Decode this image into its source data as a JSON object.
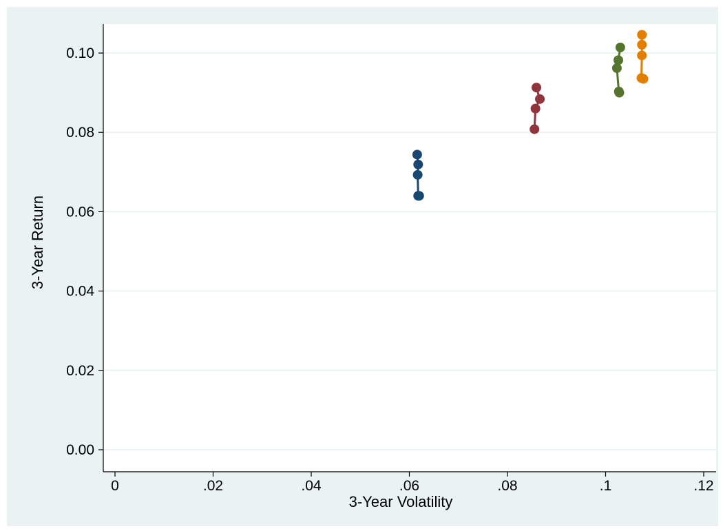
{
  "chart_data": {
    "type": "scatter",
    "title": "",
    "xlabel": "3-Year Volatility",
    "ylabel": "3-Year Return",
    "xlim": [
      0,
      0.12
    ],
    "ylim": [
      0,
      0.1
    ],
    "xticks": [
      "0",
      ".02",
      ".04",
      ".06",
      ".08",
      ".1",
      ".12"
    ],
    "xtick_values": [
      0,
      0.02,
      0.04,
      0.06,
      0.08,
      0.1,
      0.12
    ],
    "yticks": [
      "0.00",
      "0.02",
      "0.04",
      "0.06",
      "0.08",
      "0.10"
    ],
    "ytick_values": [
      0,
      0.02,
      0.04,
      0.06,
      0.08,
      0.1
    ],
    "grid": true,
    "legend": "none",
    "series": [
      {
        "color": "#1a476f",
        "points": [
          {
            "x": 0.0616,
            "y": 0.0744
          },
          {
            "x": 0.0618,
            "y": 0.0719
          },
          {
            "x": 0.0617,
            "y": 0.0693
          },
          {
            "x": 0.0618,
            "y": 0.064
          },
          {
            "x": 0.062,
            "y": 0.064
          }
        ]
      },
      {
        "color": "#90353b",
        "points": [
          {
            "x": 0.0859,
            "y": 0.0913
          },
          {
            "x": 0.0866,
            "y": 0.0884
          },
          {
            "x": 0.0857,
            "y": 0.086
          },
          {
            "x": 0.0855,
            "y": 0.0808
          }
        ]
      },
      {
        "color": "#55752f",
        "points": [
          {
            "x": 0.103,
            "y": 0.1014
          },
          {
            "x": 0.1026,
            "y": 0.0982
          },
          {
            "x": 0.1023,
            "y": 0.0962
          },
          {
            "x": 0.1027,
            "y": 0.0903
          },
          {
            "x": 0.1028,
            "y": 0.09
          }
        ]
      },
      {
        "color": "#e37e00",
        "points": [
          {
            "x": 0.1074,
            "y": 0.1046
          },
          {
            "x": 0.1074,
            "y": 0.1021
          },
          {
            "x": 0.1074,
            "y": 0.0994
          },
          {
            "x": 0.1073,
            "y": 0.0937
          },
          {
            "x": 0.1077,
            "y": 0.0935
          }
        ]
      }
    ]
  }
}
